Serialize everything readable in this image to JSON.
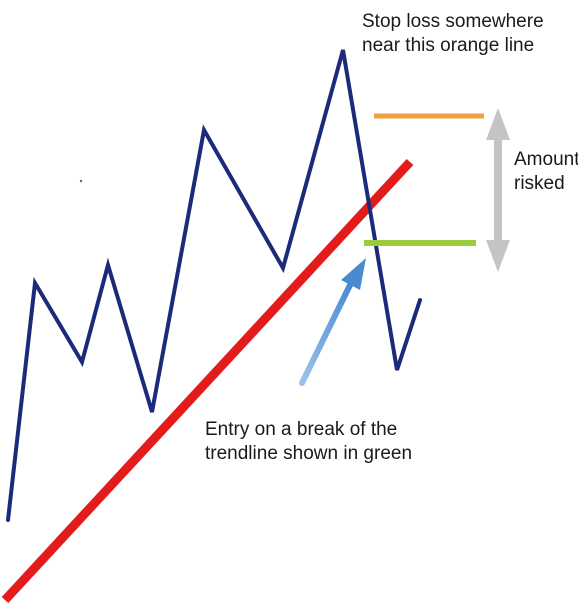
{
  "annotations": {
    "stop_loss": "Stop loss somewhere\nnear this orange line",
    "amount_risked": "Amount\nrisked",
    "entry": "Entry on a break of the\ntrendline shown in green"
  },
  "colors": {
    "price_line": "#1c2a7a",
    "trendline": "#e31b1b",
    "stop_line": "#f0a040",
    "entry_line": "#9ccc3c",
    "risk_arrow": "#c4c4c4",
    "entry_arrow": "#5b9bd5",
    "text": "#1a1a1a"
  }
}
